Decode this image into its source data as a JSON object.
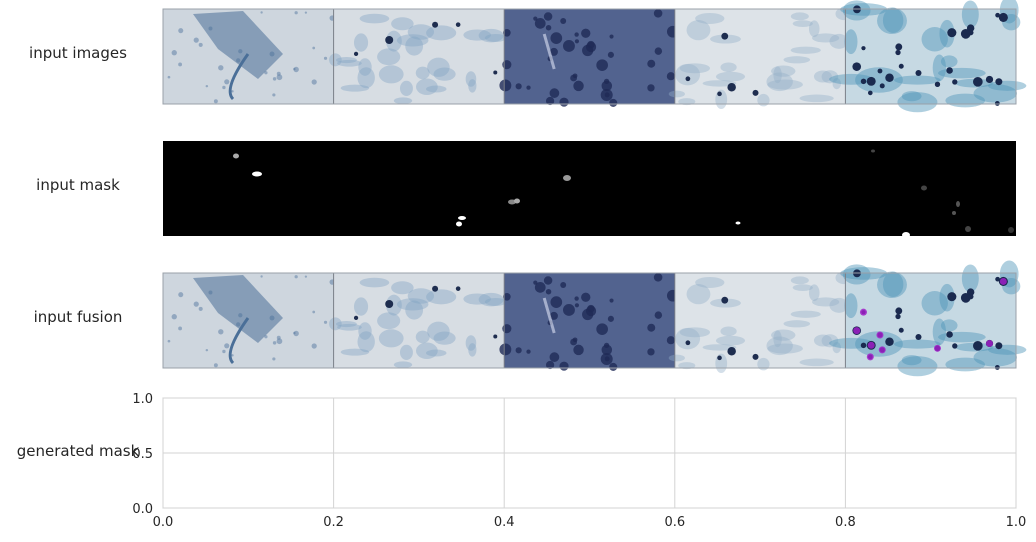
{
  "figure": {
    "rows": [
      {
        "label": "input images",
        "kind": "images"
      },
      {
        "label": "input mask",
        "kind": "mask"
      },
      {
        "label": "input fusion",
        "kind": "fusion"
      },
      {
        "label": "generated mask",
        "kind": "empty-axes"
      }
    ],
    "tiles": [
      {
        "bg": "#ced6de",
        "tint": "#4a6f98",
        "kind": "cells-sparse"
      },
      {
        "bg": "#d7dde3",
        "tint": "#7fa3c4",
        "kind": "cloud-light"
      },
      {
        "bg": "#52638f",
        "tint": "#1f2a56",
        "kind": "tissue-dark"
      },
      {
        "bg": "#dde3e8",
        "tint": "#93b0c9",
        "kind": "cloud-light"
      },
      {
        "bg": "#c6d9e3",
        "tint": "#2f5f7f",
        "kind": "cluster-blue"
      }
    ],
    "fusion_highlight_color": "#a020c8",
    "generated_mask_axes": {
      "x_ticks": [
        "0.0",
        "0.2",
        "0.4",
        "0.6",
        "0.8",
        "1.0"
      ],
      "y_ticks": [
        "0.0",
        "0.5",
        "1.0"
      ],
      "xlim": [
        0,
        1
      ],
      "ylim": [
        0,
        1
      ],
      "grid": true
    }
  }
}
